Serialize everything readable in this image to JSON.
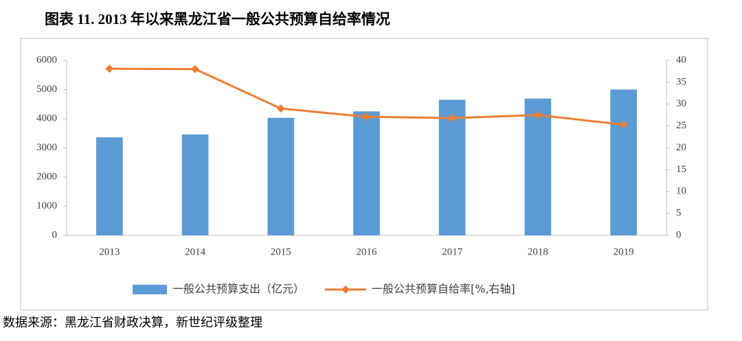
{
  "chart_data": {
    "type": "bar",
    "title": "图表 11. 2013 年以来黑龙江省一般公共预算自给率情况",
    "source": "数据来源：黑龙江省财政决算，新世纪评级整理",
    "categories": [
      "2013",
      "2014",
      "2015",
      "2016",
      "2017",
      "2018",
      "2019"
    ],
    "series": [
      {
        "name": "一般公共预算支出（亿元）",
        "type": "bar",
        "color": "#5b9bd5",
        "values": [
          3360,
          3460,
          4030,
          4250,
          4650,
          4690,
          5000
        ]
      },
      {
        "name": "一般公共预算自给率[%,右轴]",
        "type": "line",
        "axis": "y2",
        "color": "#ed7d31",
        "values": [
          38.1,
          38,
          29,
          27.1,
          26.8,
          27.5,
          25.3
        ]
      }
    ],
    "ylim": [
      0,
      6000
    ],
    "yticks": [
      0,
      1000,
      2000,
      3000,
      4000,
      5000,
      6000
    ],
    "y2lim": [
      0,
      40
    ],
    "y2ticks": [
      0,
      5,
      10,
      15,
      20,
      25,
      30,
      35,
      40
    ],
    "grid": false,
    "legend": "bottom"
  }
}
